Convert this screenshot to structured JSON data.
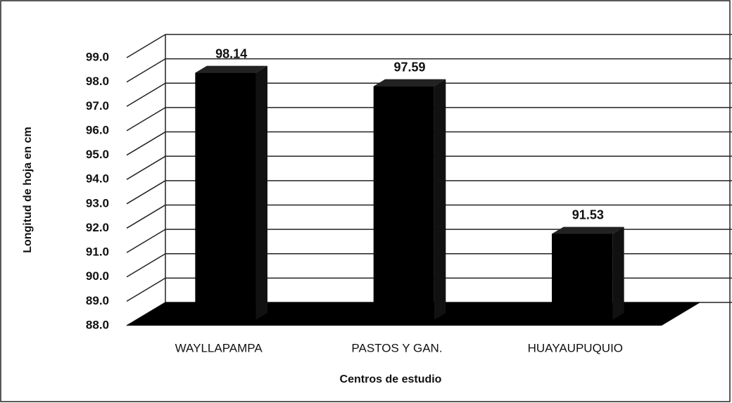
{
  "chart_data": {
    "type": "bar3d",
    "y_label": "Longitud de hoja en cm",
    "x_label": "Centros de estudio",
    "categories": [
      "WAYLLAPAMPA",
      "PASTOS Y GAN.",
      "HUAYAUPUQUIO"
    ],
    "values": [
      98.14,
      97.59,
      91.53
    ],
    "color": "#000000",
    "ylim": [
      88,
      99
    ],
    "yticks": [
      {
        "value": 88,
        "label": "88.0"
      },
      {
        "value": 89,
        "label": "89.0"
      },
      {
        "value": 90,
        "label": "90.0"
      },
      {
        "value": 91,
        "label": "91.0"
      },
      {
        "value": 92,
        "label": "92.0"
      },
      {
        "value": 93,
        "label": "93.0"
      },
      {
        "value": 94,
        "label": "94.0"
      },
      {
        "value": 95,
        "label": "95.0"
      },
      {
        "value": 96,
        "label": "96.0"
      },
      {
        "value": 97,
        "label": "97.0"
      },
      {
        "value": 98,
        "label": "98.0"
      },
      {
        "value": 99,
        "label": "99.0"
      }
    ],
    "grid": true
  }
}
